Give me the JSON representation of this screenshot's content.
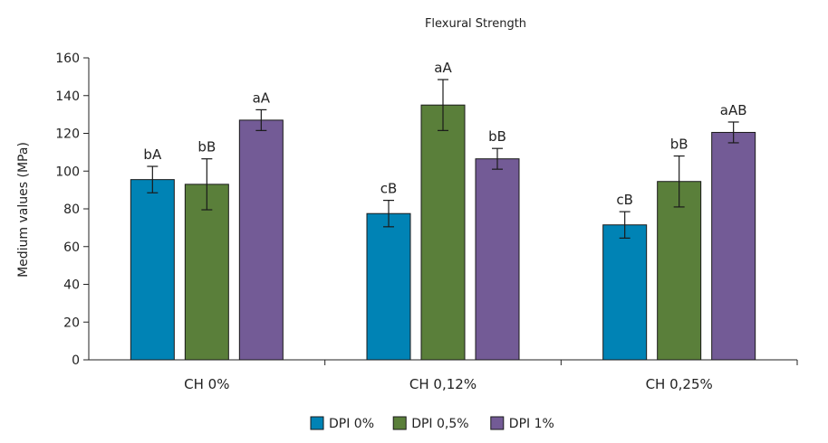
{
  "chart_data": {
    "type": "bar",
    "title": "Flexural Strength",
    "xlabel": "",
    "ylabel": "Medium values (MPa)",
    "ylim": [
      0,
      160
    ],
    "yticks": [
      0,
      20,
      40,
      60,
      80,
      100,
      120,
      140,
      160
    ],
    "categories": [
      "CH 0%",
      "CH 0,12%",
      "CH 0,25%"
    ],
    "series": [
      {
        "name": "DPI 0%",
        "color": "#0083b5",
        "values": [
          95.5,
          77.5,
          71.5
        ],
        "errors": [
          7,
          7,
          7
        ],
        "labels": [
          "bA",
          "cB",
          "cB"
        ]
      },
      {
        "name": "DPI 0,5%",
        "color": "#5a7f3a",
        "values": [
          93,
          135,
          94.5
        ],
        "errors": [
          13.5,
          13.5,
          13.5
        ],
        "labels": [
          "bB",
          "aA",
          "bB"
        ]
      },
      {
        "name": "DPI 1%",
        "color": "#735b96",
        "values": [
          127,
          106.5,
          120.5
        ],
        "errors": [
          5.5,
          5.5,
          5.5
        ],
        "labels": [
          "aA",
          "bB",
          "aAB"
        ]
      }
    ],
    "legend_position": "bottom-center",
    "grid": false
  }
}
